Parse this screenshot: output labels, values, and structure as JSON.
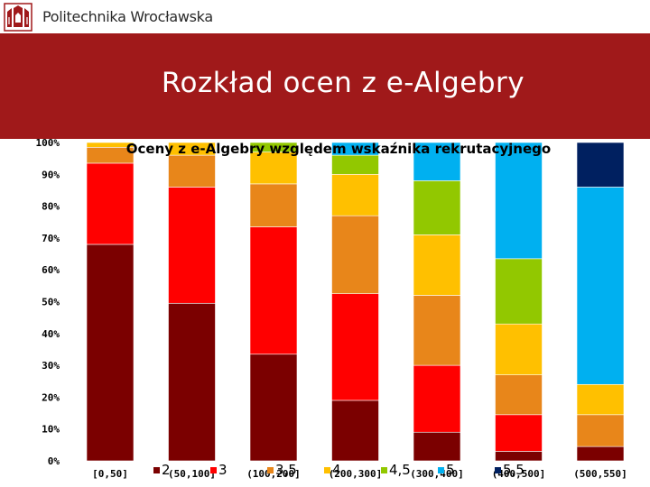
{
  "header": {
    "university": "Politechnika Wrocławska"
  },
  "slide": {
    "title": "Rozkład ocen z e-Algebry"
  },
  "colors": {
    "brand_red": "#a0191a",
    "grade_2": "#7b0000",
    "grade_3": "#ff0000",
    "grade_3_5": "#e8861a",
    "grade_4": "#ffc000",
    "grade_4_5": "#92c800",
    "grade_5": "#00b0f0",
    "grade_5_5": "#002060"
  },
  "chart_data": {
    "type": "bar",
    "stacked": "percent",
    "title": "Oceny z e-Algebry względem wskaźnika rekrutacyjnego",
    "xlabel": "",
    "ylabel": "",
    "ylim": [
      0,
      100
    ],
    "y_ticks": [
      "0%",
      "10%",
      "20%",
      "30%",
      "40%",
      "50%",
      "60%",
      "70%",
      "80%",
      "90%",
      "100%"
    ],
    "grid": false,
    "legend_position": "bottom",
    "categories": [
      "[0,50]",
      "(50,100]",
      "(100,200]",
      "(200,300]",
      "(300,400]",
      "(400,500]",
      "(500,550]"
    ],
    "series": [
      {
        "name": "2",
        "color": "#7b0000",
        "values": [
          68,
          49.5,
          33.5,
          19,
          9,
          3,
          4.5
        ]
      },
      {
        "name": "3",
        "color": "#ff0000",
        "values": [
          25.5,
          36.5,
          40,
          33.5,
          21,
          11.5,
          0
        ]
      },
      {
        "name": "3,5",
        "color": "#e8861a",
        "values": [
          5,
          10,
          13.5,
          24.5,
          22,
          12.5,
          10
        ]
      },
      {
        "name": "4",
        "color": "#ffc000",
        "values": [
          1.5,
          4,
          10,
          13,
          19,
          16,
          9.5
        ]
      },
      {
        "name": "4,5",
        "color": "#92c800",
        "values": [
          0,
          0,
          3,
          6,
          17,
          20.5,
          0
        ]
      },
      {
        "name": "5",
        "color": "#00b0f0",
        "values": [
          0,
          0,
          0,
          4,
          12,
          36.5,
          62
        ]
      },
      {
        "name": "5,5",
        "color": "#002060",
        "values": [
          0,
          0,
          0,
          0,
          0,
          0,
          14
        ]
      }
    ]
  }
}
